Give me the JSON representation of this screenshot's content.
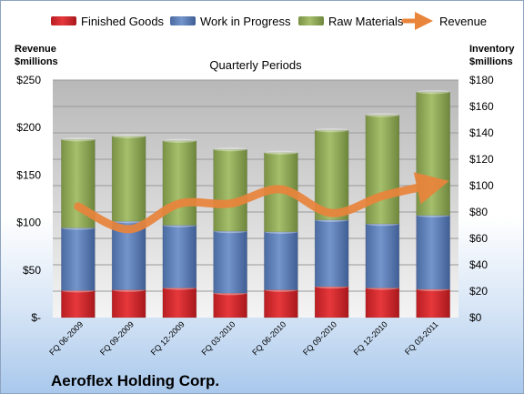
{
  "chart_data": {
    "type": "bar",
    "stacked": true,
    "subtitle": "Quarterly Periods",
    "company": "Aeroflex Holding Corp.",
    "left_axis": {
      "label_line1": "Revenue",
      "label_line2": "$millions",
      "range": [
        0,
        250
      ],
      "ticks": [
        "$-",
        "$50",
        "$100",
        "$150",
        "$200",
        "$250"
      ],
      "tick_values": [
        0,
        50,
        100,
        150,
        200,
        250
      ]
    },
    "right_axis": {
      "label_line1": "Inventory",
      "label_line2": "$millions",
      "range": [
        0,
        180
      ],
      "ticks": [
        "$0",
        "$20",
        "$40",
        "$60",
        "$80",
        "$100",
        "$120",
        "$140",
        "$160",
        "$180"
      ],
      "tick_values": [
        0,
        20,
        40,
        60,
        80,
        100,
        120,
        140,
        160,
        180
      ]
    },
    "categories": [
      "FQ 06-2009",
      "FQ 09-2009",
      "FQ 12-2009",
      "FQ 03-2010",
      "FQ 06-2010",
      "FQ 09-2010",
      "FQ 12-2010",
      "FQ 03-2011"
    ],
    "series": [
      {
        "name": "Finished Goods",
        "axis": "right",
        "color": "#d9262b",
        "values": [
          20.5,
          21,
          22.5,
          18.5,
          21,
          23.5,
          22.5,
          21.5
        ]
      },
      {
        "name": "Work in Progress",
        "axis": "right",
        "color": "#5b7fb9",
        "values": [
          47.5,
          52,
          47.5,
          47,
          44,
          50.5,
          48.5,
          56
        ]
      },
      {
        "name": "Raw Materials",
        "axis": "right",
        "color": "#91a95a",
        "values": [
          67,
          64.5,
          64,
          62,
          60,
          68,
          82.5,
          93.5
        ]
      },
      {
        "name": "Revenue",
        "type": "line",
        "axis": "left",
        "color": "#e9843b",
        "values": [
          117,
          93,
          120,
          120,
          135,
          110,
          128,
          140
        ]
      }
    ],
    "grid": true,
    "legend_position": "top"
  }
}
